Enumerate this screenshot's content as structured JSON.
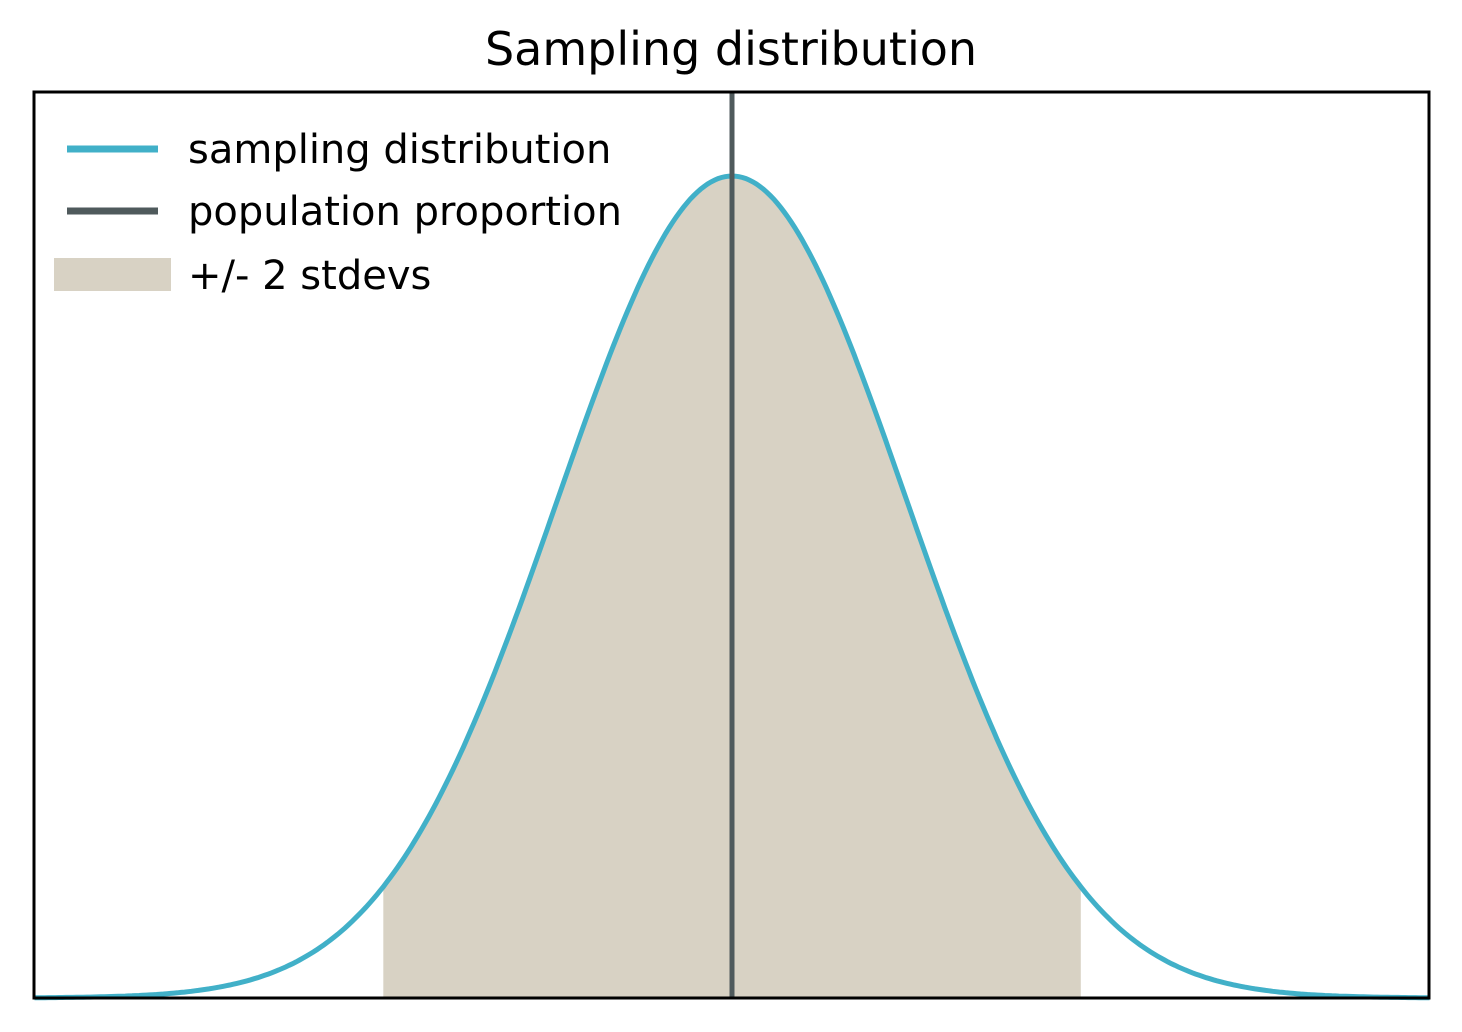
{
  "chart_data": {
    "type": "line",
    "title": "Sampling distribution",
    "xlabel": "",
    "ylabel": "",
    "xticks": [],
    "yticks": [],
    "grid": false,
    "legend_position": "upper left",
    "x_range_in_stdevs": [
      -4,
      4
    ],
    "series": [
      {
        "name": "sampling distribution",
        "kind": "normal-pdf",
        "mean": 0,
        "stdev": 1,
        "color": "#41b0c8"
      },
      {
        "name": "population proportion",
        "kind": "vertical-line",
        "x": 0,
        "color": "#4f5a5c"
      },
      {
        "name": "+/- 2 stdevs",
        "kind": "fill-under-curve",
        "x_from": -2,
        "x_to": 2,
        "color": "#d8d2c4"
      }
    ]
  },
  "legend": {
    "items": [
      {
        "label": "sampling distribution"
      },
      {
        "label": "population proportion"
      },
      {
        "label": "+/- 2 stdevs"
      }
    ]
  },
  "colors": {
    "curve": "#41b0c8",
    "vline": "#4f5a5c",
    "fill": "#d8d2c4",
    "axes": "#000000"
  }
}
